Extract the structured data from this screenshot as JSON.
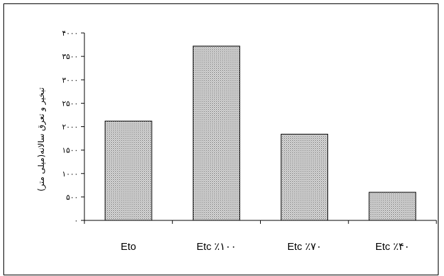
{
  "chart_data": {
    "type": "bar",
    "title": "",
    "xlabel": "",
    "ylabel": "تبخیر و تعرق سالانه(میلی متر)",
    "categories": [
      "Eto",
      "Etc ٪۱۰۰",
      "Etc ٪۷۰",
      "Etc ٪۴۰"
    ],
    "values": [
      2120,
      3720,
      1840,
      600
    ],
    "ylim": [
      0,
      4000
    ],
    "yticks": [
      0,
      500,
      1000,
      1500,
      2000,
      2500,
      3000,
      3500,
      4000
    ],
    "ytick_labels": [
      "۰",
      "۵۰۰",
      "۱۰۰۰",
      "۱۵۰۰",
      "۲۰۰۰",
      "۲۵۰۰",
      "۳۰۰۰",
      "۳۵۰۰",
      "۴۰۰۰"
    ],
    "grid": false,
    "legend": "none",
    "bar_fill": "dotted gray"
  }
}
